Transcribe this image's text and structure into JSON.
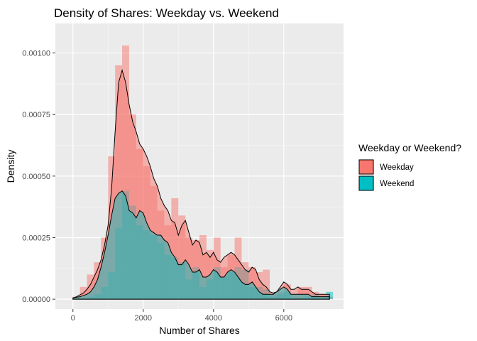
{
  "chart_data": {
    "type": "histogram+density",
    "title": "Density of Shares: Weekday vs. Weekend",
    "xlabel": "Number of Shares",
    "ylabel": "Density",
    "xlim": [
      -500,
      7700
    ],
    "ylim": [
      -4e-05,
      0.00112
    ],
    "x_ticks": [
      {
        "value": 0,
        "label": "0"
      },
      {
        "value": 2000,
        "label": "2000"
      },
      {
        "value": 4000,
        "label": "4000"
      },
      {
        "value": 6000,
        "label": "6000"
      }
    ],
    "y_ticks": [
      {
        "value": 0,
        "label": "0.00000"
      },
      {
        "value": 0.00025,
        "label": "0.00025"
      },
      {
        "value": 0.0005,
        "label": "0.00050"
      },
      {
        "value": 0.00075,
        "label": "0.00075"
      },
      {
        "value": 0.001,
        "label": "0.00100"
      }
    ],
    "grid": true,
    "legend": {
      "title": "Weekday or Weekend?",
      "position": "right"
    },
    "bin_width": 200,
    "series": [
      {
        "name": "Weekday",
        "color": "#F8766D",
        "bins_start": [
          0,
          200,
          400,
          600,
          800,
          1000,
          1200,
          1400,
          1600,
          1800,
          2000,
          2200,
          2400,
          2600,
          2800,
          3000,
          3200,
          3400,
          3600,
          3800,
          4000,
          4200,
          4400,
          4600,
          4800,
          5000,
          5200,
          5400,
          5600,
          5800,
          6000,
          6200,
          6400,
          6600,
          6800,
          7000,
          7200
        ],
        "hist_values": [
          1e-05,
          5e-05,
          0.0001,
          0.00015,
          0.00025,
          0.00058,
          0.00095,
          0.00103,
          0.00075,
          0.00061,
          0.00054,
          0.00046,
          0.00036,
          0.0003,
          0.00041,
          0.00034,
          0.00025,
          0.00024,
          0.00026,
          0.0002,
          0.00025,
          0.00013,
          0.00018,
          0.00025,
          0.00015,
          0.00013,
          0.00011,
          0.00012,
          2e-05,
          3e-05,
          6e-05,
          2e-05,
          5e-05,
          5e-05,
          3e-05,
          2e-05,
          1e-05
        ],
        "density_x": [
          0,
          100,
          200,
          300,
          400,
          500,
          600,
          700,
          800,
          900,
          1000,
          1100,
          1200,
          1300,
          1400,
          1500,
          1600,
          1700,
          1800,
          1900,
          2000,
          2100,
          2200,
          2300,
          2400,
          2500,
          2600,
          2700,
          2800,
          2900,
          3000,
          3100,
          3200,
          3300,
          3400,
          3500,
          3600,
          3700,
          3800,
          3900,
          4000,
          4100,
          4200,
          4300,
          4400,
          4500,
          4600,
          4700,
          4800,
          4900,
          5000,
          5100,
          5200,
          5300,
          5400,
          5500,
          5600,
          5700,
          5800,
          5900,
          6000,
          6100,
          6200,
          6300,
          6400,
          6500,
          6600,
          6700,
          6800,
          6900,
          7000,
          7100,
          7200,
          7300
        ],
        "density_y": [
          5e-06,
          1e-05,
          1.8e-05,
          2.5e-05,
          4e-05,
          6e-05,
          9e-05,
          0.00012,
          0.00016,
          0.00022,
          0.0003,
          0.00045,
          0.00068,
          0.00088,
          0.00093,
          0.00088,
          0.00079,
          0.00072,
          0.00068,
          0.00063,
          0.00061,
          0.00058,
          0.00054,
          0.00049,
          0.00046,
          0.00041,
          0.00038,
          0.00036,
          0.00032,
          0.00031,
          0.00026,
          0.0003,
          0.00032,
          0.00027,
          0.00022,
          0.00024,
          0.00023,
          0.00018,
          0.00019,
          0.00017,
          0.00019,
          0.00016,
          0.00015,
          0.00017,
          0.00018,
          0.00019,
          0.00018,
          0.00016,
          0.00014,
          0.00012,
          0.00011,
          0.00013,
          0.00012,
          8e-05,
          6e-05,
          5e-05,
          3e-05,
          2.5e-05,
          3e-05,
          5e-05,
          7e-05,
          6e-05,
          4e-05,
          4e-05,
          5e-05,
          4e-05,
          4e-05,
          4e-05,
          3e-05,
          2e-05,
          2e-05,
          2e-05,
          2e-05,
          2e-05
        ]
      },
      {
        "name": "Weekend",
        "color": "#00BFC4",
        "bins_start": [
          0,
          200,
          400,
          600,
          800,
          1000,
          1200,
          1400,
          1600,
          1800,
          2000,
          2200,
          2400,
          2600,
          2800,
          3000,
          3200,
          3400,
          3600,
          3800,
          4000,
          4200,
          4400,
          4600,
          4800,
          5000,
          5200,
          5400,
          5600,
          5800,
          6000,
          6200,
          6400,
          6600,
          6800,
          7000,
          7200
        ],
        "hist_values": [
          3e-06,
          5e-06,
          1e-05,
          2e-05,
          5e-05,
          0.00011,
          0.00029,
          0.00044,
          0.00038,
          0.0003,
          0.00028,
          0.00026,
          0.00023,
          0.00018,
          0.00017,
          0.00015,
          8e-05,
          0.00013,
          5e-05,
          8e-05,
          0.00013,
          9e-05,
          0.00011,
          0.00013,
          0.00012,
          5e-05,
          5e-05,
          4e-05,
          1e-05,
          2e-05,
          3e-05,
          5e-06,
          5e-06,
          1e-05,
          2e-05,
          5e-06,
          3e-05
        ],
        "density_x": [
          0,
          100,
          200,
          300,
          400,
          500,
          600,
          700,
          800,
          900,
          1000,
          1100,
          1200,
          1300,
          1400,
          1500,
          1600,
          1700,
          1800,
          1900,
          2000,
          2100,
          2200,
          2300,
          2400,
          2500,
          2600,
          2700,
          2800,
          2900,
          3000,
          3100,
          3200,
          3300,
          3400,
          3500,
          3600,
          3700,
          3800,
          3900,
          4000,
          4100,
          4200,
          4300,
          4400,
          4500,
          4600,
          4700,
          4800,
          4900,
          5000,
          5100,
          5200,
          5300,
          5400,
          5500,
          5600,
          5700,
          5800,
          5900,
          6000,
          6100,
          6200,
          6300,
          6400,
          6500,
          6600,
          6700,
          6800,
          6900,
          7000,
          7100,
          7200,
          7300
        ],
        "density_y": [
          5e-06,
          8e-06,
          1e-05,
          1.5e-05,
          2e-05,
          3e-05,
          5e-05,
          8e-05,
          0.00013,
          0.00019,
          0.00026,
          0.00034,
          0.00041,
          0.00043,
          0.00044,
          0.00042,
          0.00036,
          0.00035,
          0.00033,
          0.00036,
          0.00035,
          0.00031,
          0.00028,
          0.00027,
          0.00026,
          0.00026,
          0.00024,
          0.00023,
          0.00019,
          0.00017,
          0.00014,
          0.00014,
          0.00016,
          0.00014,
          0.00011,
          0.00011,
          0.00012,
          9e-05,
          9e-05,
          0.0001,
          0.00012,
          0.00011,
          9e-05,
          9e-05,
          0.00011,
          0.00012,
          0.00011,
          9e-05,
          7e-05,
          6e-05,
          6e-05,
          7e-05,
          5e-05,
          3e-05,
          2e-05,
          2e-05,
          2e-05,
          2e-05,
          3e-05,
          4e-05,
          5e-05,
          4e-05,
          2e-05,
          2e-05,
          2e-05,
          2e-05,
          2e-05,
          2e-05,
          1e-05,
          1e-05,
          1e-05,
          1e-05,
          1e-05,
          1e-05
        ]
      }
    ]
  }
}
